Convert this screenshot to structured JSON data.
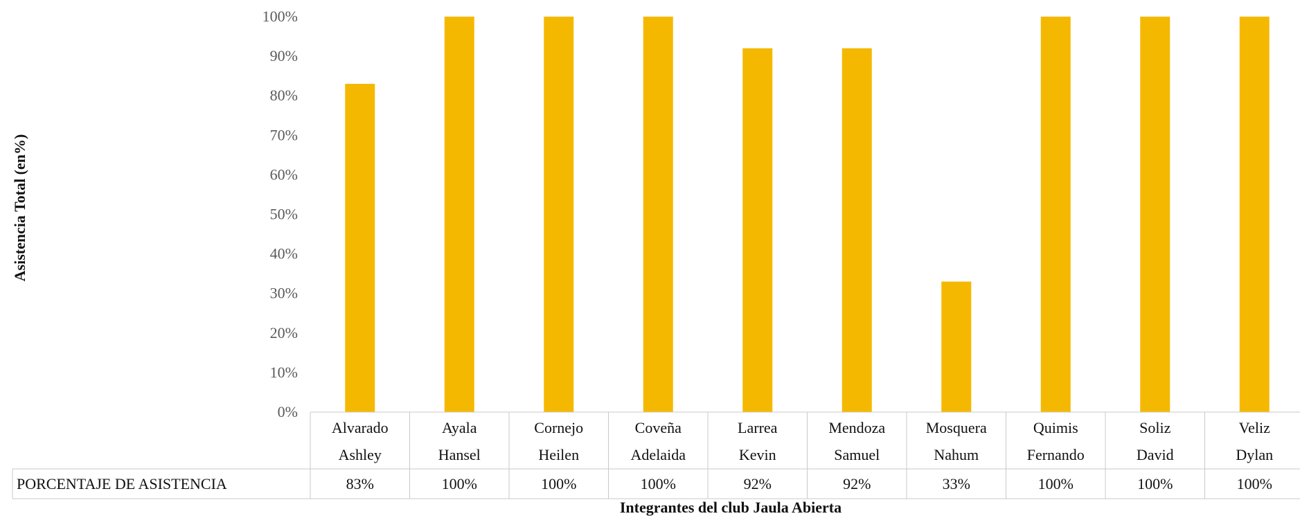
{
  "chart_data": {
    "type": "bar",
    "categories": [
      [
        "Alvarado",
        "Ashley"
      ],
      [
        "Ayala",
        "Hansel"
      ],
      [
        "Cornejo",
        "Heilen"
      ],
      [
        "Coveña",
        "Adelaida"
      ],
      [
        "Larrea",
        "Kevin"
      ],
      [
        "Mendoza",
        "Samuel"
      ],
      [
        "Mosquera",
        "Nahum"
      ],
      [
        "Quimis",
        "Fernando"
      ],
      [
        "Soliz",
        "David"
      ],
      [
        "Veliz",
        "Dylan"
      ]
    ],
    "series": [
      {
        "name": "PORCENTAJE DE ASISTENCIA",
        "values": [
          83,
          100,
          100,
          100,
          92,
          92,
          33,
          100,
          100,
          100
        ],
        "labels": [
          "83%",
          "100%",
          "100%",
          "100%",
          "92%",
          "92%",
          "33%",
          "100%",
          "100%",
          "100%"
        ],
        "color": "#F5B800"
      }
    ],
    "ylabel": "Asistencia Total (en%)",
    "xlabel": "Integrantes del club Jaula Abierta",
    "ylim": [
      0,
      100
    ],
    "yticks": [
      "0%",
      "10%",
      "20%",
      "30%",
      "40%",
      "50%",
      "60%",
      "70%",
      "80%",
      "90%",
      "100%"
    ],
    "grid": false,
    "legend": "data-table"
  }
}
